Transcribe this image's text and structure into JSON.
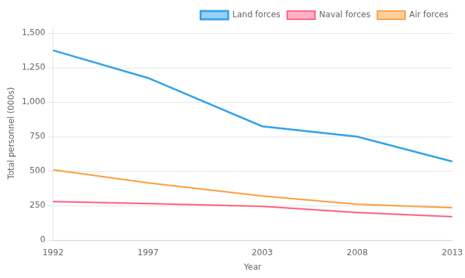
{
  "chart_data": {
    "type": "line",
    "x": [
      1992,
      1997,
      2003,
      2008,
      2013
    ],
    "series": [
      {
        "name": "Land forces",
        "values": [
          1375,
          1175,
          825,
          750,
          570
        ]
      },
      {
        "name": "Naval forces",
        "values": [
          280,
          265,
          245,
          200,
          170
        ]
      },
      {
        "name": "Air forces",
        "values": [
          510,
          415,
          320,
          260,
          235
        ]
      }
    ],
    "x_label": "Year",
    "y_label": "Total personnel (000s)",
    "xlim": [
      1992,
      2013
    ],
    "xticks": [
      1992,
      1997,
      2003,
      2008,
      2013
    ],
    "ylim": [
      0,
      1550
    ],
    "yticks": [
      0,
      250,
      500,
      750,
      {
        "value": 1000,
        "label": "1,000"
      },
      {
        "value": 1250,
        "label": "1,250"
      },
      {
        "value": 1500,
        "label": "1,500"
      }
    ],
    "grid": "y",
    "legend": "upper right"
  }
}
